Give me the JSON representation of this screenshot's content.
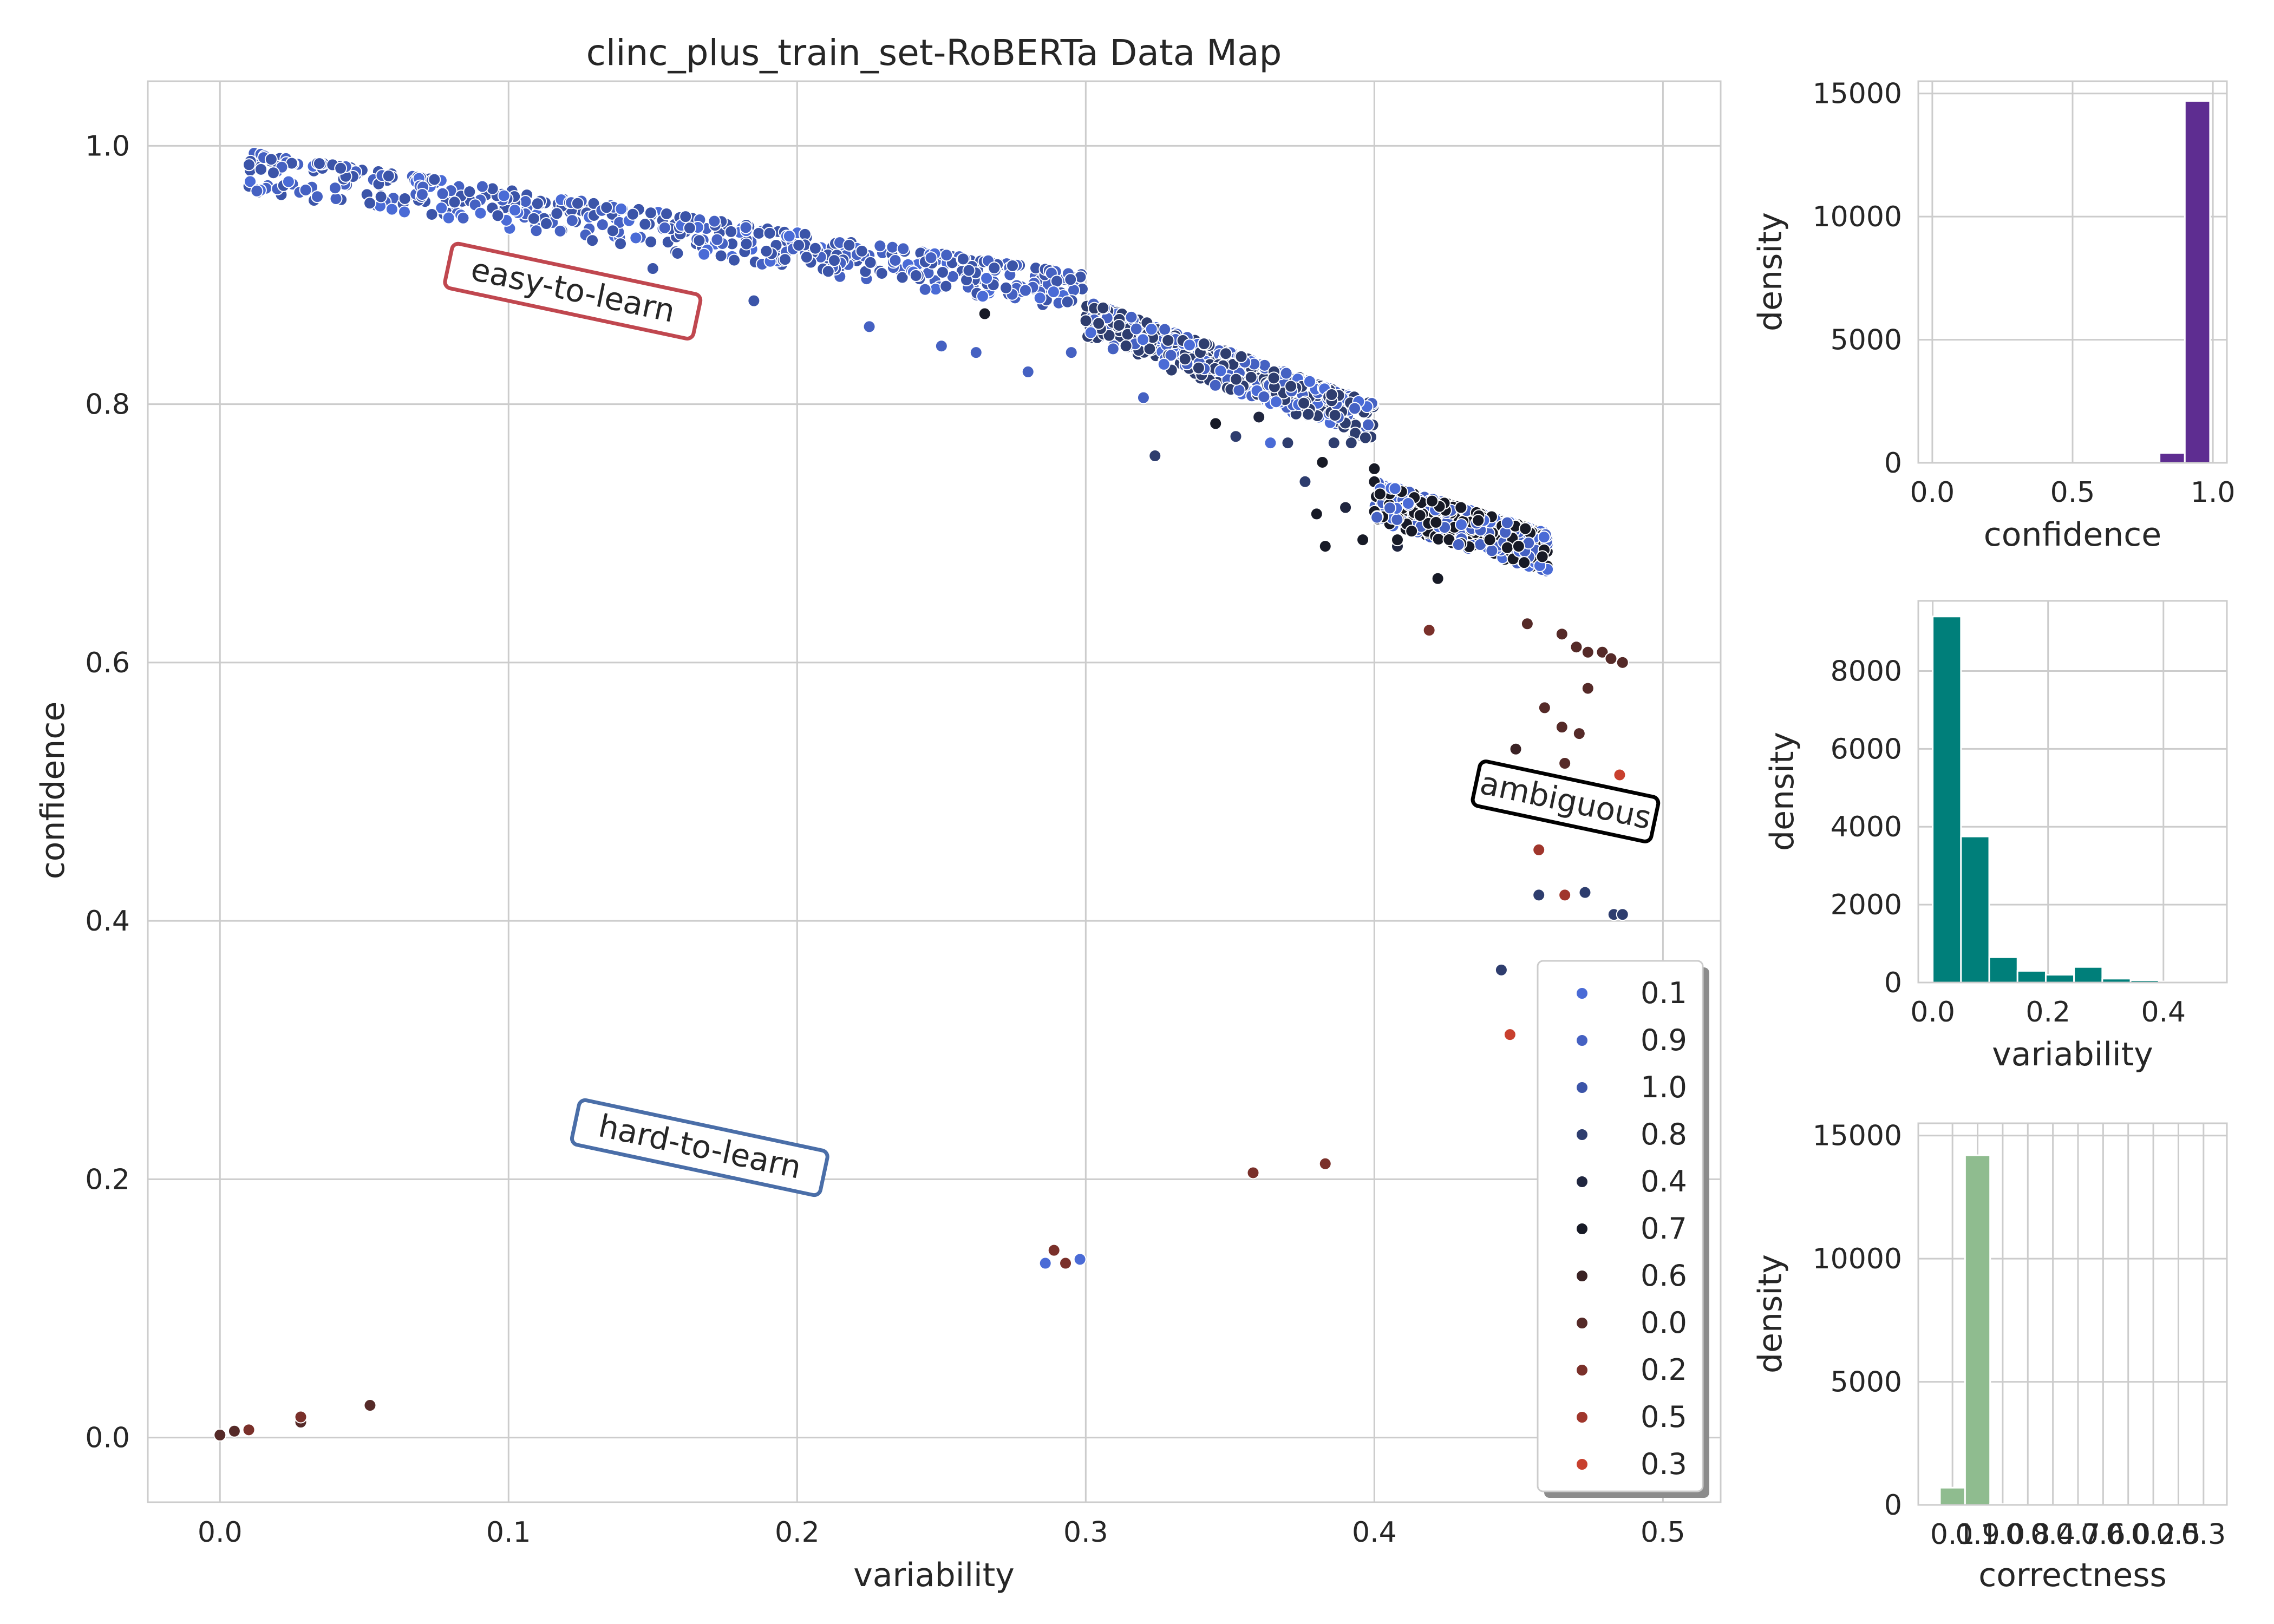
{
  "chart_data": [
    {
      "type": "scatter",
      "title": "clinc_plus_train_set-RoBERTa Data Map",
      "xlabel": "variability",
      "ylabel": "confidence",
      "xlim": [
        -0.025,
        0.52
      ],
      "ylim": [
        -0.05,
        1.05
      ],
      "x_ticks": [
        "0.0",
        "0.1",
        "0.2",
        "0.3",
        "0.4",
        "0.5"
      ],
      "y_ticks": [
        "0.0",
        "0.2",
        "0.4",
        "0.6",
        "0.8",
        "1.0"
      ],
      "grid": true,
      "legend_position": "lower-right",
      "legend": [
        {
          "label": "0.1",
          "color": "#4a6bd6"
        },
        {
          "label": "0.9",
          "color": "#4561c2"
        },
        {
          "label": "1.0",
          "color": "#3b54a8"
        },
        {
          "label": "0.8",
          "color": "#2e3d6e"
        },
        {
          "label": "0.4",
          "color": "#20263f"
        },
        {
          "label": "0.7",
          "color": "#171a26"
        },
        {
          "label": "0.6",
          "color": "#3a2224"
        },
        {
          "label": "0.0",
          "color": "#552a28"
        },
        {
          "label": "0.2",
          "color": "#7a302a"
        },
        {
          "label": "0.5",
          "color": "#a0362c"
        },
        {
          "label": "0.3",
          "color": "#c8402e"
        }
      ],
      "annotations": [
        {
          "text": "easy-to-learn",
          "x": 0.122,
          "y": 0.885,
          "rotation": 12,
          "border_color": "#c0474f"
        },
        {
          "text": "ambiguous",
          "x": 0.466,
          "y": 0.49,
          "rotation": 12,
          "border_color": "#000000"
        },
        {
          "text": "hard-to-learn",
          "x": 0.166,
          "y": 0.222,
          "rotation": 12,
          "border_color": "#4a6ea8"
        }
      ],
      "band_segments": [
        {
          "x0": 0.01,
          "y0": 0.995,
          "x1": 0.3,
          "y1": 0.9,
          "correctness": "1.0",
          "spread": 0.03
        },
        {
          "x0": 0.3,
          "y0": 0.88,
          "x1": 0.4,
          "y1": 0.8,
          "correctness": "0.8",
          "spread": 0.03
        },
        {
          "x0": 0.4,
          "y0": 0.74,
          "x1": 0.46,
          "y1": 0.7,
          "correctness": "0.7",
          "spread": 0.03
        }
      ],
      "points": [
        {
          "x": 0.185,
          "y": 0.88,
          "c": "1.0"
        },
        {
          "x": 0.15,
          "y": 0.905,
          "c": "1.0"
        },
        {
          "x": 0.225,
          "y": 0.86,
          "c": "0.9"
        },
        {
          "x": 0.25,
          "y": 0.845,
          "c": "0.9"
        },
        {
          "x": 0.262,
          "y": 0.84,
          "c": "0.9"
        },
        {
          "x": 0.28,
          "y": 0.825,
          "c": "0.9"
        },
        {
          "x": 0.295,
          "y": 0.84,
          "c": "0.9"
        },
        {
          "x": 0.32,
          "y": 0.805,
          "c": "0.9"
        },
        {
          "x": 0.324,
          "y": 0.76,
          "c": "0.8"
        },
        {
          "x": 0.265,
          "y": 0.87,
          "c": "0.7"
        },
        {
          "x": 0.345,
          "y": 0.785,
          "c": "0.7"
        },
        {
          "x": 0.352,
          "y": 0.775,
          "c": "0.8"
        },
        {
          "x": 0.36,
          "y": 0.79,
          "c": "0.4"
        },
        {
          "x": 0.364,
          "y": 0.77,
          "c": "0.1"
        },
        {
          "x": 0.37,
          "y": 0.77,
          "c": "0.8"
        },
        {
          "x": 0.376,
          "y": 0.74,
          "c": "0.8"
        },
        {
          "x": 0.382,
          "y": 0.755,
          "c": "0.7"
        },
        {
          "x": 0.386,
          "y": 0.77,
          "c": "0.8"
        },
        {
          "x": 0.392,
          "y": 0.77,
          "c": "0.8"
        },
        {
          "x": 0.39,
          "y": 0.72,
          "c": "0.4"
        },
        {
          "x": 0.38,
          "y": 0.715,
          "c": "0.7"
        },
        {
          "x": 0.383,
          "y": 0.69,
          "c": "0.7"
        },
        {
          "x": 0.396,
          "y": 0.695,
          "c": "0.7"
        },
        {
          "x": 0.4,
          "y": 0.75,
          "c": "0.7"
        },
        {
          "x": 0.408,
          "y": 0.69,
          "c": "0.4"
        },
        {
          "x": 0.408,
          "y": 0.695,
          "c": "0.7"
        },
        {
          "x": 0.42,
          "y": 0.725,
          "c": "0.7"
        },
        {
          "x": 0.43,
          "y": 0.72,
          "c": "0.7"
        },
        {
          "x": 0.436,
          "y": 0.71,
          "c": "0.7"
        },
        {
          "x": 0.44,
          "y": 0.695,
          "c": "0.7"
        },
        {
          "x": 0.45,
          "y": 0.69,
          "c": "0.7"
        },
        {
          "x": 0.422,
          "y": 0.665,
          "c": "0.7"
        },
        {
          "x": 0.419,
          "y": 0.625,
          "c": "0.2"
        },
        {
          "x": 0.453,
          "y": 0.63,
          "c": "0.0"
        },
        {
          "x": 0.465,
          "y": 0.622,
          "c": "0.0"
        },
        {
          "x": 0.47,
          "y": 0.612,
          "c": "0.0"
        },
        {
          "x": 0.474,
          "y": 0.608,
          "c": "0.0"
        },
        {
          "x": 0.479,
          "y": 0.608,
          "c": "0.0"
        },
        {
          "x": 0.482,
          "y": 0.603,
          "c": "0.0"
        },
        {
          "x": 0.486,
          "y": 0.6,
          "c": "0.0"
        },
        {
          "x": 0.474,
          "y": 0.58,
          "c": "0.0"
        },
        {
          "x": 0.459,
          "y": 0.565,
          "c": "0.0"
        },
        {
          "x": 0.465,
          "y": 0.55,
          "c": "0.0"
        },
        {
          "x": 0.471,
          "y": 0.545,
          "c": "0.0"
        },
        {
          "x": 0.449,
          "y": 0.533,
          "c": "0.6"
        },
        {
          "x": 0.466,
          "y": 0.522,
          "c": "0.0"
        },
        {
          "x": 0.485,
          "y": 0.513,
          "c": "0.3"
        },
        {
          "x": 0.457,
          "y": 0.455,
          "c": "0.5"
        },
        {
          "x": 0.457,
          "y": 0.42,
          "c": "0.8"
        },
        {
          "x": 0.466,
          "y": 0.42,
          "c": "0.5"
        },
        {
          "x": 0.473,
          "y": 0.422,
          "c": "0.8"
        },
        {
          "x": 0.483,
          "y": 0.405,
          "c": "0.8"
        },
        {
          "x": 0.486,
          "y": 0.405,
          "c": "0.8"
        },
        {
          "x": 0.444,
          "y": 0.362,
          "c": "0.8"
        },
        {
          "x": 0.447,
          "y": 0.312,
          "c": "0.3"
        },
        {
          "x": 0.358,
          "y": 0.205,
          "c": "0.2"
        },
        {
          "x": 0.383,
          "y": 0.212,
          "c": "0.2"
        },
        {
          "x": 0.289,
          "y": 0.145,
          "c": "0.2"
        },
        {
          "x": 0.286,
          "y": 0.135,
          "c": "0.1"
        },
        {
          "x": 0.293,
          "y": 0.135,
          "c": "0.2"
        },
        {
          "x": 0.298,
          "y": 0.138,
          "c": "0.1"
        },
        {
          "x": 0.0,
          "y": 0.002,
          "c": "0.0"
        },
        {
          "x": 0.005,
          "y": 0.005,
          "c": "0.0"
        },
        {
          "x": 0.01,
          "y": 0.006,
          "c": "0.2"
        },
        {
          "x": 0.028,
          "y": 0.012,
          "c": "0.0"
        },
        {
          "x": 0.028,
          "y": 0.016,
          "c": "0.2"
        },
        {
          "x": 0.052,
          "y": 0.025,
          "c": "0.0"
        }
      ]
    },
    {
      "type": "bar",
      "title": "",
      "xlabel": "confidence",
      "ylabel": "density",
      "xlim": [
        -0.05,
        1.05
      ],
      "ylim": [
        0,
        15500
      ],
      "x_ticks": [
        "0.0",
        "0.5",
        "1.0"
      ],
      "y_ticks": [
        "0",
        "5000",
        "10000",
        "15000"
      ],
      "color": "#5e2d91",
      "bins": [
        {
          "x0": 0.81,
          "x1": 0.9,
          "value": 400
        },
        {
          "x0": 0.9,
          "x1": 0.99,
          "value": 14700
        }
      ]
    },
    {
      "type": "bar",
      "title": "",
      "xlabel": "variability",
      "ylabel": "density",
      "xlim": [
        -0.025,
        0.51
      ],
      "ylim": [
        0,
        9800
      ],
      "x_ticks": [
        "0.0",
        "0.2",
        "0.4"
      ],
      "y_ticks": [
        "0",
        "2000",
        "4000",
        "6000",
        "8000"
      ],
      "color": "#007f7a",
      "bins": [
        {
          "x0": 0.0,
          "x1": 0.049,
          "value": 9400
        },
        {
          "x0": 0.049,
          "x1": 0.098,
          "value": 3750
        },
        {
          "x0": 0.098,
          "x1": 0.147,
          "value": 650
        },
        {
          "x0": 0.147,
          "x1": 0.196,
          "value": 300
        },
        {
          "x0": 0.196,
          "x1": 0.245,
          "value": 200
        },
        {
          "x0": 0.245,
          "x1": 0.294,
          "value": 400
        },
        {
          "x0": 0.294,
          "x1": 0.343,
          "value": 100
        },
        {
          "x0": 0.343,
          "x1": 0.392,
          "value": 60
        },
        {
          "x0": 0.392,
          "x1": 0.441,
          "value": 25
        },
        {
          "x0": 0.441,
          "x1": 0.49,
          "value": 10
        }
      ]
    },
    {
      "type": "bar",
      "title": "",
      "xlabel": "correctness",
      "ylabel": "density",
      "ylim": [
        0,
        15500
      ],
      "y_ticks": [
        "0",
        "5000",
        "10000",
        "15000"
      ],
      "x_ticks": [
        "0.1",
        "0.9",
        "1.0",
        "0.8",
        "0.4",
        "0.7",
        "0.6",
        "0.0",
        "0.2",
        "0.5",
        "0.3"
      ],
      "color": "#8fbc8f",
      "values": [
        700,
        14200,
        30,
        5,
        5,
        3,
        3,
        3,
        3,
        2,
        2
      ]
    }
  ]
}
